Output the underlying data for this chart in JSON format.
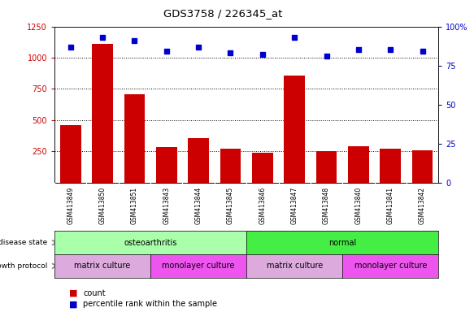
{
  "title": "GDS3758 / 226345_at",
  "samples": [
    "GSM413849",
    "GSM413850",
    "GSM413851",
    "GSM413843",
    "GSM413844",
    "GSM413845",
    "GSM413846",
    "GSM413847",
    "GSM413848",
    "GSM413840",
    "GSM413841",
    "GSM413842"
  ],
  "counts": [
    460,
    1110,
    710,
    285,
    355,
    270,
    240,
    860,
    250,
    290,
    270,
    260
  ],
  "percentile_ranks": [
    87,
    93,
    91,
    84,
    87,
    83,
    82,
    93,
    81,
    85,
    85,
    84
  ],
  "ylim_left": [
    0,
    1250
  ],
  "ylim_right": [
    0,
    100
  ],
  "yticks_left": [
    250,
    500,
    750,
    1000,
    1250
  ],
  "yticks_right": [
    0,
    25,
    50,
    75,
    100
  ],
  "bar_color": "#cc0000",
  "dot_color": "#0000cc",
  "tick_area_color": "#cccccc",
  "disease_groups": [
    {
      "label": "osteoarthritis",
      "start": 0,
      "end": 6,
      "color": "#aaffaa"
    },
    {
      "label": "normal",
      "start": 6,
      "end": 12,
      "color": "#44ee44"
    }
  ],
  "growth_groups": [
    {
      "label": "matrix culture",
      "start": 0,
      "end": 3,
      "color": "#ddaadd"
    },
    {
      "label": "monolayer culture",
      "start": 3,
      "end": 6,
      "color": "#ee55ee"
    },
    {
      "label": "matrix culture",
      "start": 6,
      "end": 9,
      "color": "#ddaadd"
    },
    {
      "label": "monolayer culture",
      "start": 9,
      "end": 12,
      "color": "#ee55ee"
    }
  ],
  "disease_state_label": "disease state",
  "growth_protocol_label": "growth protocol",
  "count_label": "count",
  "percentile_label": "percentile rank within the sample",
  "legend_count_color": "#cc0000",
  "legend_dot_color": "#0000cc"
}
